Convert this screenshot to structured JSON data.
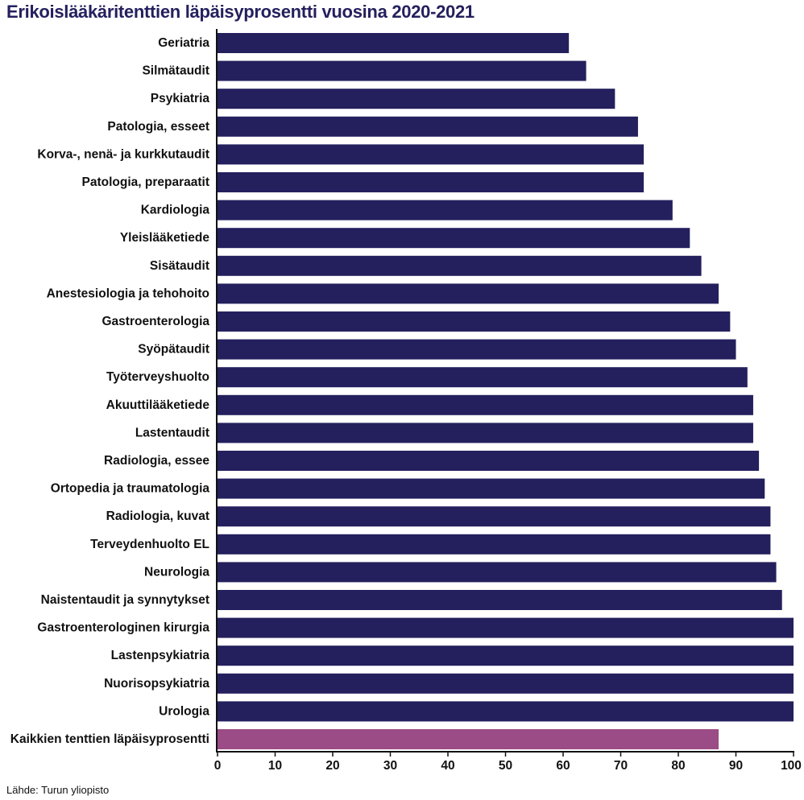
{
  "chart_data": {
    "type": "bar",
    "orientation": "horizontal",
    "title": "Erikoislääkäritenttien läpäisyprosentti vuosina 2020-2021",
    "source": "Lähde: Turun yliopisto",
    "categories": [
      "Geriatria",
      "Silmätaudit",
      "Psykiatria",
      "Patologia, esseet",
      "Korva-, nenä- ja kurkkutaudit",
      "Patologia, preparaatit",
      "Kardiologia",
      "Yleislääketiede",
      "Sisätaudit",
      "Anestesiologia ja tehohoito",
      "Gastroenterologia",
      "Syöpätaudit",
      "Työterveyshuolto",
      "Akuuttilääketiede",
      "Lastentaudit",
      "Radiologia, essee",
      "Ortopedia ja traumatologia",
      "Radiologia, kuvat",
      "Terveydenhuolto EL",
      "Neurologia",
      "Naistentaudit ja synnytykset",
      "Gastroenterologinen kirurgia",
      "Lastenpsykiatria",
      "Nuorisopsykiatria",
      "Urologia",
      "Kaikkien tenttien läpäisyprosentti"
    ],
    "values": [
      61,
      64,
      69,
      73,
      74,
      74,
      79,
      82,
      84,
      87,
      89,
      90,
      92,
      93,
      93,
      94,
      95,
      96,
      96,
      97,
      98,
      100,
      100,
      100,
      100,
      87
    ],
    "highlight_index": 25,
    "xlim": [
      0,
      100
    ],
    "xticks": [
      0,
      10,
      20,
      30,
      40,
      50,
      60,
      70,
      80,
      90,
      100
    ],
    "xlabel": "",
    "ylabel": "",
    "grid": false,
    "legend": "none",
    "colors": {
      "bar": "#24205e",
      "highlight": "#9b4b85",
      "axis": "#111111",
      "title": "#24205e"
    }
  }
}
